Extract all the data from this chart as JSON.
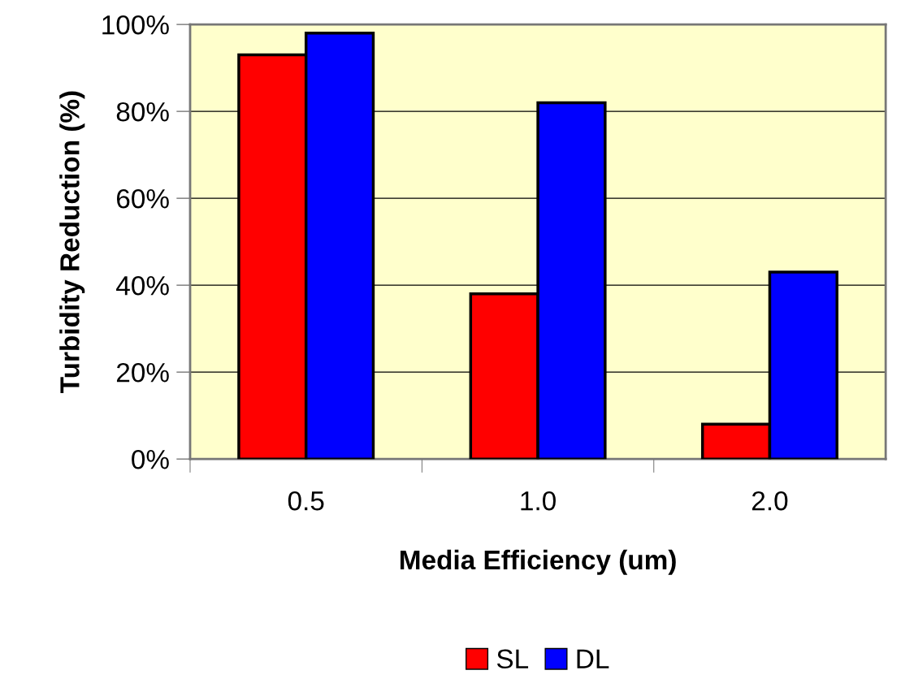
{
  "chart_data": {
    "type": "bar",
    "xlabel": "Media Efficiency (um)",
    "ylabel": "Turbidity Reduction (%)",
    "categories": [
      "0.5",
      "1.0",
      "2.0"
    ],
    "series": [
      {
        "name": "SL",
        "color": "#ff0000",
        "values": [
          93,
          38,
          8
        ]
      },
      {
        "name": "DL",
        "color": "#0000ff",
        "values": [
          98,
          82,
          43
        ]
      }
    ],
    "ylim": [
      0,
      100
    ],
    "yticks": [
      {
        "value": 0,
        "label": "0%"
      },
      {
        "value": 20,
        "label": "20%"
      },
      {
        "value": 40,
        "label": "40%"
      },
      {
        "value": 60,
        "label": "60%"
      },
      {
        "value": 80,
        "label": "80%"
      },
      {
        "value": 100,
        "label": "100%"
      }
    ],
    "grid": "y",
    "legend": "bottom"
  }
}
